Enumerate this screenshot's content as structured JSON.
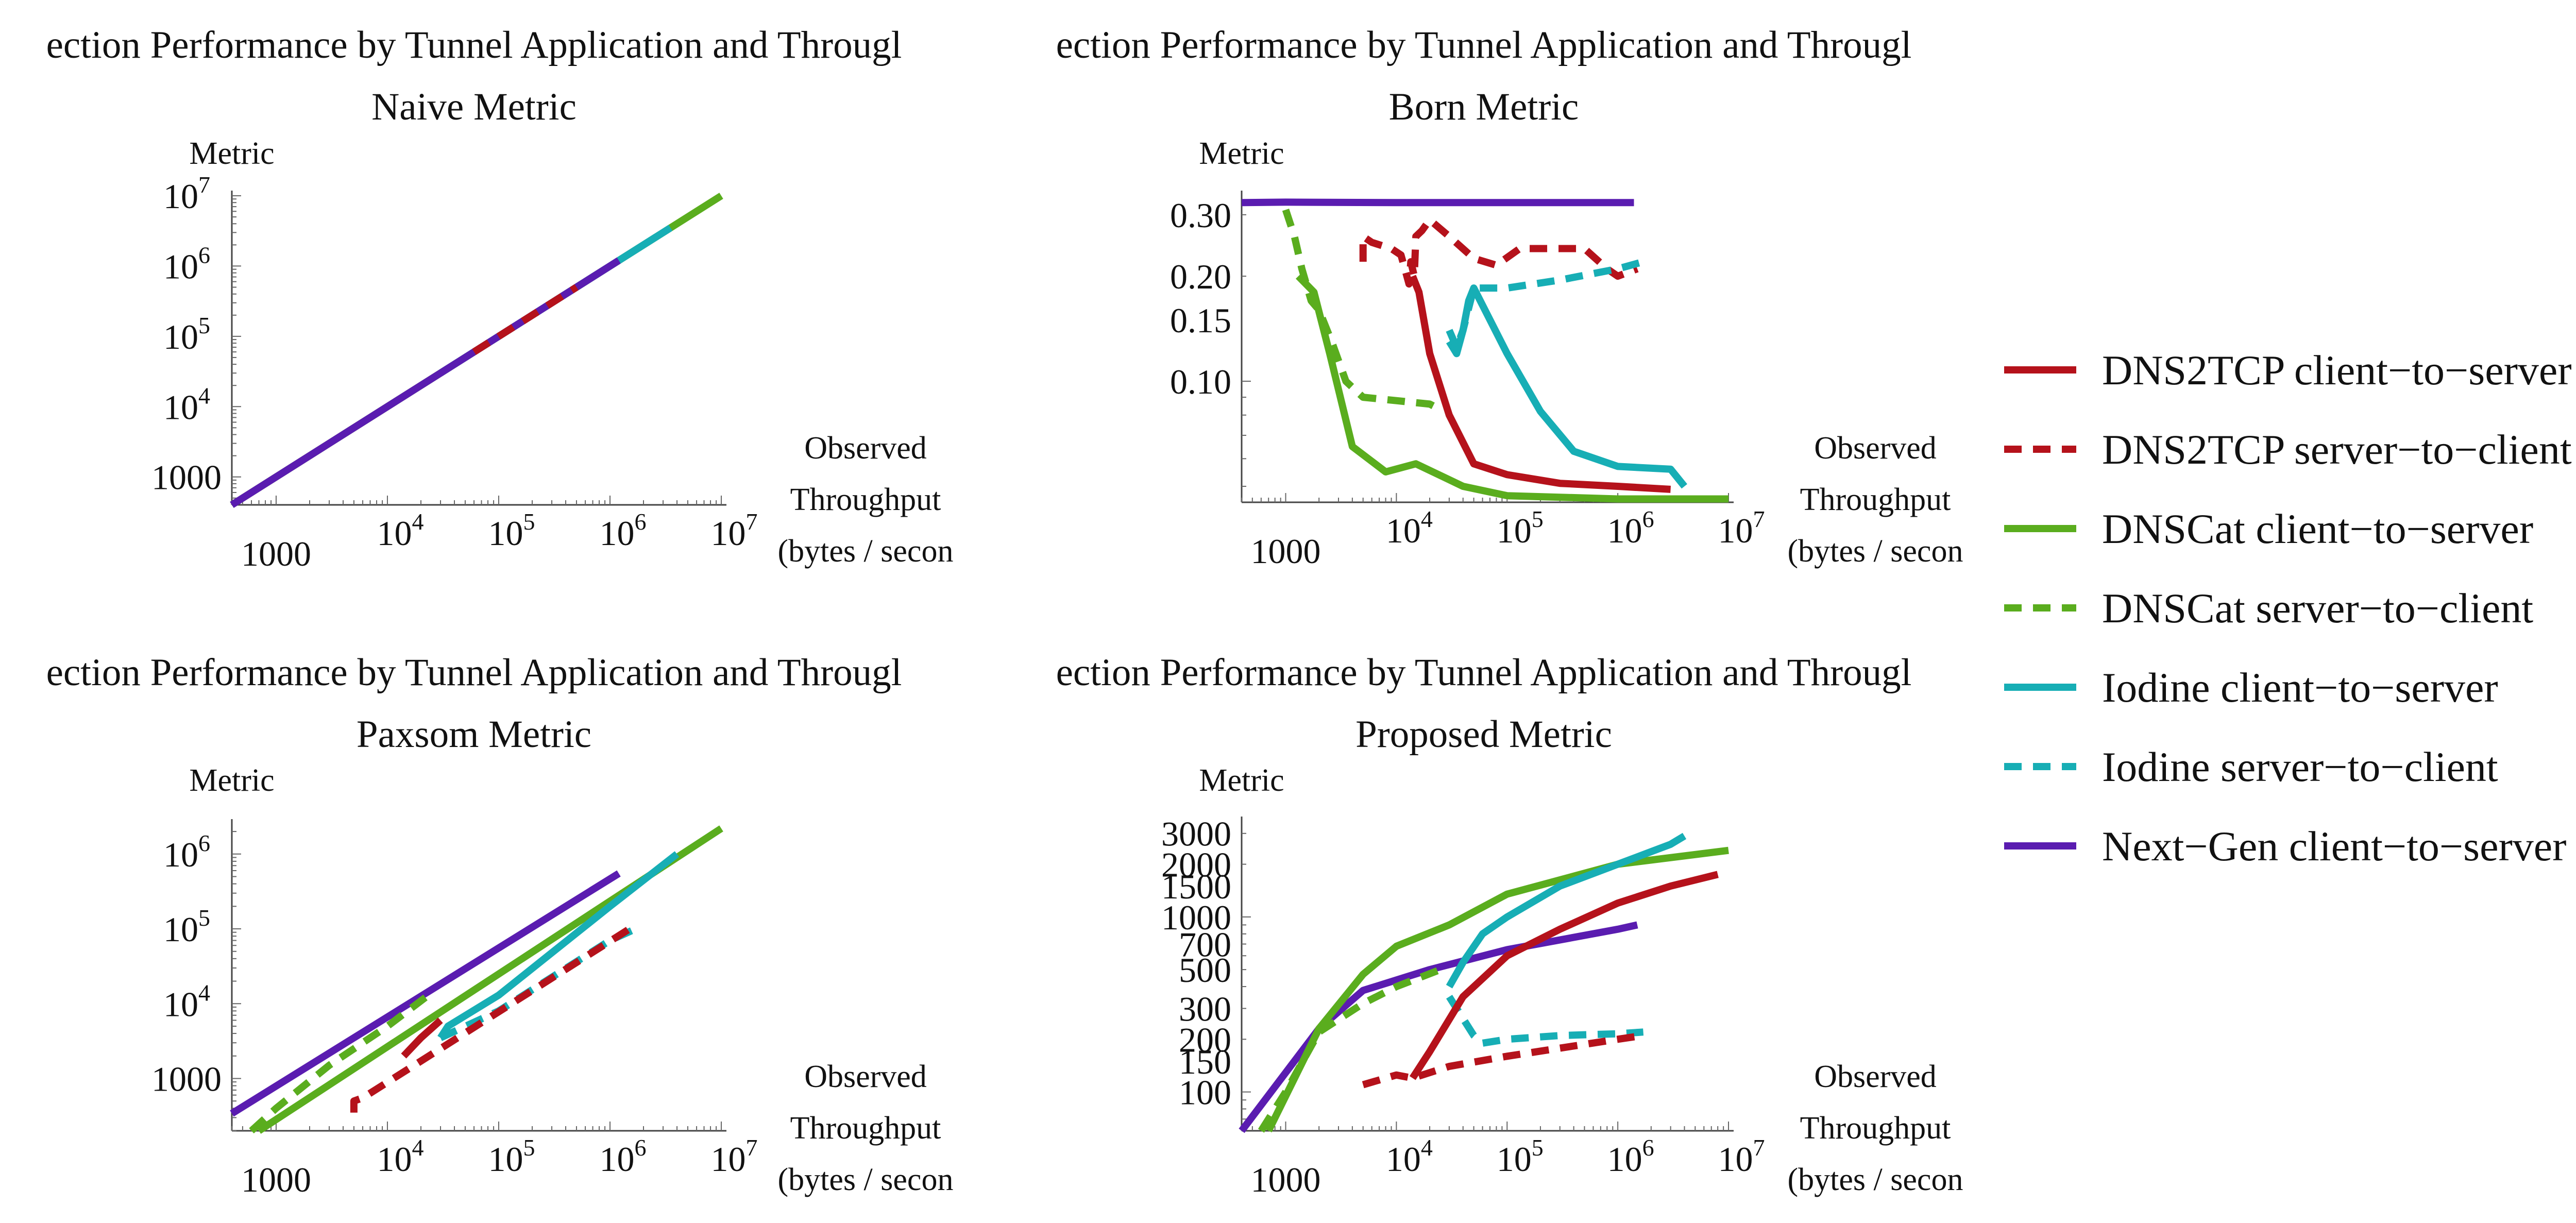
{
  "figure": {
    "title_prefix": "Detection Performance by Tunnel Application and Throughput"
  },
  "colors": {
    "DNS2TCP": "#b5121b",
    "DNSCat": "#5aad1e",
    "Iodine": "#17aeb5",
    "Next-Gen": "#5a1cb0",
    "axis": "#444444"
  },
  "legend": [
    {
      "label": "DNS2TCP client−to−server",
      "color": "#b5121b",
      "dashed": false
    },
    {
      "label": "DNS2TCP server−to−client",
      "color": "#b5121b",
      "dashed": true
    },
    {
      "label": "DNSCat client−to−server",
      "color": "#5aad1e",
      "dashed": false
    },
    {
      "label": "DNSCat server−to−client",
      "color": "#5aad1e",
      "dashed": true
    },
    {
      "label": "Iodine client−to−server",
      "color": "#17aeb5",
      "dashed": false
    },
    {
      "label": "Iodine server−to−client",
      "color": "#17aeb5",
      "dashed": true
    },
    {
      "label": "Next−Gen client−to−server",
      "color": "#5a1cb0",
      "dashed": false
    }
  ],
  "chart_data": [
    {
      "type": "line",
      "title": "ection Performance by Tunnel Application and Througl",
      "subtitle": "Naive Metric",
      "ylabel": "Metric",
      "xlabel": [
        "Observed",
        "Throughput",
        "(bytes / secon"
      ],
      "xscale": "log",
      "yscale": "log",
      "xlim": [
        400,
        10000000
      ],
      "ylim": [
        400,
        10000000
      ],
      "xticks": [
        {
          "label": "1000",
          "value": 1000
        },
        {
          "label": "10^4",
          "value": 10000
        },
        {
          "label": "10^5",
          "value": 100000
        },
        {
          "label": "10^6",
          "value": 1000000
        },
        {
          "label": "10^7",
          "value": 10000000
        }
      ],
      "yticks": [
        {
          "label": "1000",
          "value": 1000
        },
        {
          "label": "10^4",
          "value": 10000
        },
        {
          "label": "10^5",
          "value": 100000
        },
        {
          "label": "10^6",
          "value": 1000000
        },
        {
          "label": "10^7",
          "value": 10000000
        }
      ],
      "series": [
        {
          "name": "DNSCat client−to−server",
          "color": "#5aad1e",
          "dashed": false,
          "x": [
            400,
            10000000
          ],
          "y": [
            400,
            10000000
          ]
        },
        {
          "name": "Iodine client−to−server",
          "color": "#17aeb5",
          "dashed": false,
          "x": [
            30000,
            3500000
          ],
          "y": [
            30000,
            3500000
          ]
        },
        {
          "name": "Next−Gen client−to−server",
          "color": "#5a1cb0",
          "dashed": false,
          "x": [
            400,
            1200000
          ],
          "y": [
            400,
            1200000
          ]
        },
        {
          "name": "DNS2TCP server−to−client",
          "color": "#b5121b",
          "dashed": true,
          "x": [
            60000,
            500000
          ],
          "y": [
            60000,
            500000
          ]
        }
      ]
    },
    {
      "type": "line",
      "title": "ection Performance by Tunnel Application and Througl",
      "subtitle": "Born Metric",
      "ylabel": "Metric",
      "xlabel": [
        "Observed",
        "Throughput",
        "(bytes / secon"
      ],
      "xscale": "log",
      "yscale": "log",
      "xlim": [
        400,
        10000000
      ],
      "ylim": [
        0.045,
        0.34
      ],
      "xticks": [
        {
          "label": "1000",
          "value": 1000
        },
        {
          "label": "10^4",
          "value": 10000
        },
        {
          "label": "10^5",
          "value": 100000
        },
        {
          "label": "10^6",
          "value": 1000000
        },
        {
          "label": "10^7",
          "value": 10000000
        }
      ],
      "yticks": [
        {
          "label": "0.10",
          "value": 0.1
        },
        {
          "label": "0.15",
          "value": 0.15
        },
        {
          "label": "0.20",
          "value": 0.2
        },
        {
          "label": "0.30",
          "value": 0.3
        }
      ],
      "series": [
        {
          "name": "Next−Gen client−to−server",
          "color": "#5a1cb0",
          "dashed": false,
          "x": [
            400,
            1000,
            10000,
            100000,
            1400000
          ],
          "y": [
            0.325,
            0.326,
            0.325,
            0.325,
            0.325
          ]
        },
        {
          "name": "DNS2TCP client−to−server",
          "color": "#b5121b",
          "dashed": false,
          "x": [
            14000,
            16000,
            20000,
            30000,
            50000,
            100000,
            300000,
            1000000,
            3000000
          ],
          "y": [
            0.2,
            0.18,
            0.12,
            0.08,
            0.058,
            0.054,
            0.051,
            0.05,
            0.049
          ]
        },
        {
          "name": "DNS2TCP server−to−client",
          "color": "#b5121b",
          "dashed": true,
          "x": [
            5000,
            5000,
            6000,
            9000,
            11000,
            13000,
            13500,
            14500,
            15000,
            17000,
            20000,
            30000,
            50000,
            80000,
            130000,
            250000,
            500000,
            800000,
            1000000,
            1500000
          ],
          "y": [
            0.22,
            0.26,
            0.25,
            0.24,
            0.23,
            0.19,
            0.22,
            0.2,
            0.26,
            0.27,
            0.29,
            0.26,
            0.225,
            0.215,
            0.24,
            0.24,
            0.24,
            0.21,
            0.2,
            0.21
          ]
        },
        {
          "name": "DNSCat client−to−server",
          "color": "#5aad1e",
          "dashed": false,
          "x": [
            1300,
            1800,
            2500,
            4000,
            8000,
            15000,
            40000,
            100000,
            1000000,
            10000000
          ],
          "y": [
            0.2,
            0.18,
            0.12,
            0.065,
            0.055,
            0.058,
            0.05,
            0.047,
            0.046,
            0.046
          ]
        },
        {
          "name": "DNSCat server−to−client",
          "color": "#5aad1e",
          "dashed": true,
          "x": [
            1000,
            1200,
            1400,
            1700,
            2000,
            2600,
            3500,
            5000,
            10000,
            20000,
            25000
          ],
          "y": [
            0.31,
            0.26,
            0.21,
            0.17,
            0.16,
            0.13,
            0.1,
            0.09,
            0.088,
            0.086,
            0.083
          ]
        },
        {
          "name": "Iodine client−to−server",
          "color": "#17aeb5",
          "dashed": false,
          "x": [
            30000,
            35000,
            40000,
            45000,
            50000,
            100000,
            200000,
            400000,
            1000000,
            3000000,
            4000000
          ],
          "y": [
            0.13,
            0.12,
            0.14,
            0.17,
            0.185,
            0.12,
            0.082,
            0.063,
            0.057,
            0.056,
            0.05
          ]
        },
        {
          "name": "Iodine server−to−client",
          "color": "#17aeb5",
          "dashed": true,
          "x": [
            30000,
            35000,
            40000,
            50000,
            100000,
            300000,
            1000000,
            1700000
          ],
          "y": [
            0.14,
            0.125,
            0.14,
            0.185,
            0.185,
            0.195,
            0.21,
            0.22
          ]
        }
      ]
    },
    {
      "type": "line",
      "title": "ection Performance by Tunnel Application and Througl",
      "subtitle": "Paxsom Metric",
      "ylabel": "Metric",
      "xlabel": [
        "Observed",
        "Throughput",
        "(bytes / secon"
      ],
      "xscale": "log",
      "yscale": "log",
      "xlim": [
        400,
        10000000
      ],
      "ylim": [
        200,
        2500000
      ],
      "xticks": [
        {
          "label": "1000",
          "value": 1000
        },
        {
          "label": "10^4",
          "value": 10000
        },
        {
          "label": "10^5",
          "value": 100000
        },
        {
          "label": "10^6",
          "value": 1000000
        },
        {
          "label": "10^7",
          "value": 10000000
        }
      ],
      "yticks": [
        {
          "label": "1000",
          "value": 1000
        },
        {
          "label": "10^4",
          "value": 10000
        },
        {
          "label": "10^5",
          "value": 100000
        },
        {
          "label": "10^6",
          "value": 1000000
        }
      ],
      "series": [
        {
          "name": "Next−Gen client−to−server",
          "color": "#5a1cb0",
          "dashed": false,
          "x": [
            400,
            1200000
          ],
          "y": [
            340,
            550000
          ]
        },
        {
          "name": "DNSCat client−to−server",
          "color": "#5aad1e",
          "dashed": false,
          "x": [
            700,
            10000000
          ],
          "y": [
            200,
            2200000
          ]
        },
        {
          "name": "DNSCat server−to−client",
          "color": "#5aad1e",
          "dashed": true,
          "x": [
            600,
            1000,
            3000,
            10000,
            25000
          ],
          "y": [
            200,
            400,
            1500,
            5000,
            14000
          ]
        },
        {
          "name": "Iodine client−to−server",
          "color": "#17aeb5",
          "dashed": false,
          "x": [
            30000,
            35000,
            100000,
            1000000,
            4000000
          ],
          "y": [
            3500,
            5000,
            13000,
            200000,
            1000000
          ]
        },
        {
          "name": "Iodine server−to−client",
          "color": "#17aeb5",
          "dashed": true,
          "x": [
            30000,
            100000,
            1000000,
            1700000
          ],
          "y": [
            3500,
            8000,
            70000,
            100000
          ]
        },
        {
          "name": "DNS2TCP client−to−server",
          "color": "#b5121b",
          "dashed": false,
          "x": [
            14000,
            20000,
            30000
          ],
          "y": [
            2000,
            3500,
            6000
          ]
        },
        {
          "name": "DNS2TCP server−to−client",
          "color": "#b5121b",
          "dashed": true,
          "x": [
            5000,
            5000,
            6000,
            1500000
          ],
          "y": [
            350,
            500,
            550,
            100000
          ]
        }
      ]
    },
    {
      "type": "line",
      "title": "ection Performance by Tunnel Application and Througl",
      "subtitle": "Proposed Metric",
      "ylabel": "Metric",
      "xlabel": [
        "Observed",
        "Throughput",
        "(bytes / secon"
      ],
      "xscale": "log",
      "yscale": "log",
      "xlim": [
        400,
        10000000
      ],
      "ylim": [
        60,
        3500
      ],
      "xticks": [
        {
          "label": "1000",
          "value": 1000
        },
        {
          "label": "10^4",
          "value": 10000
        },
        {
          "label": "10^5",
          "value": 100000
        },
        {
          "label": "10^6",
          "value": 1000000
        },
        {
          "label": "10^7",
          "value": 10000000
        }
      ],
      "yticks": [
        {
          "label": "100",
          "value": 100
        },
        {
          "label": "150",
          "value": 150
        },
        {
          "label": "200",
          "value": 200
        },
        {
          "label": "300",
          "value": 300
        },
        {
          "label": "500",
          "value": 500
        },
        {
          "label": "700",
          "value": 700
        },
        {
          "label": "1000",
          "value": 1000
        },
        {
          "label": "1500",
          "value": 1500
        },
        {
          "label": "2000",
          "value": 2000
        },
        {
          "label": "3000",
          "value": 3000
        }
      ],
      "series": [
        {
          "name": "Next−Gen client−to−server",
          "color": "#5a1cb0",
          "dashed": false,
          "x": [
            400,
            2000,
            5000,
            20000,
            100000,
            1000000,
            1500000
          ],
          "y": [
            60,
            230,
            380,
            500,
            650,
            850,
            900
          ]
        },
        {
          "name": "DNSCat client−to−server",
          "color": "#5aad1e",
          "dashed": false,
          "x": [
            700,
            2000,
            5000,
            10000,
            30000,
            100000,
            1000000,
            10000000
          ],
          "y": [
            60,
            230,
            470,
            680,
            900,
            1350,
            2000,
            2400
          ]
        },
        {
          "name": "DNSCat server−to−client",
          "color": "#5aad1e",
          "dashed": true,
          "x": [
            600,
            1000,
            2000,
            5000,
            10000,
            25000
          ],
          "y": [
            60,
            100,
            220,
            320,
            400,
            500
          ]
        },
        {
          "name": "Iodine client−to−server",
          "color": "#17aeb5",
          "dashed": false,
          "x": [
            30000,
            40000,
            60000,
            100000,
            300000,
            1000000,
            3000000,
            4000000
          ],
          "y": [
            400,
            550,
            800,
            1000,
            1500,
            2000,
            2600,
            2900
          ]
        },
        {
          "name": "Iodine server−to−client",
          "color": "#17aeb5",
          "dashed": true,
          "x": [
            30000,
            50000,
            60000,
            100000,
            300000,
            1000000,
            1700000
          ],
          "y": [
            350,
            210,
            190,
            200,
            210,
            215,
            220
          ]
        },
        {
          "name": "DNS2TCP client−to−server",
          "color": "#b5121b",
          "dashed": false,
          "x": [
            14000,
            20000,
            40000,
            100000,
            300000,
            1000000,
            3000000,
            8000000
          ],
          "y": [
            120,
            170,
            350,
            600,
            850,
            1200,
            1500,
            1750
          ]
        },
        {
          "name": "DNS2TCP server−to−client",
          "color": "#b5121b",
          "dashed": true,
          "x": [
            5000,
            10000,
            14000,
            30000,
            100000,
            1000000,
            1700000
          ],
          "y": [
            110,
            125,
            120,
            140,
            160,
            200,
            210
          ]
        }
      ]
    }
  ]
}
